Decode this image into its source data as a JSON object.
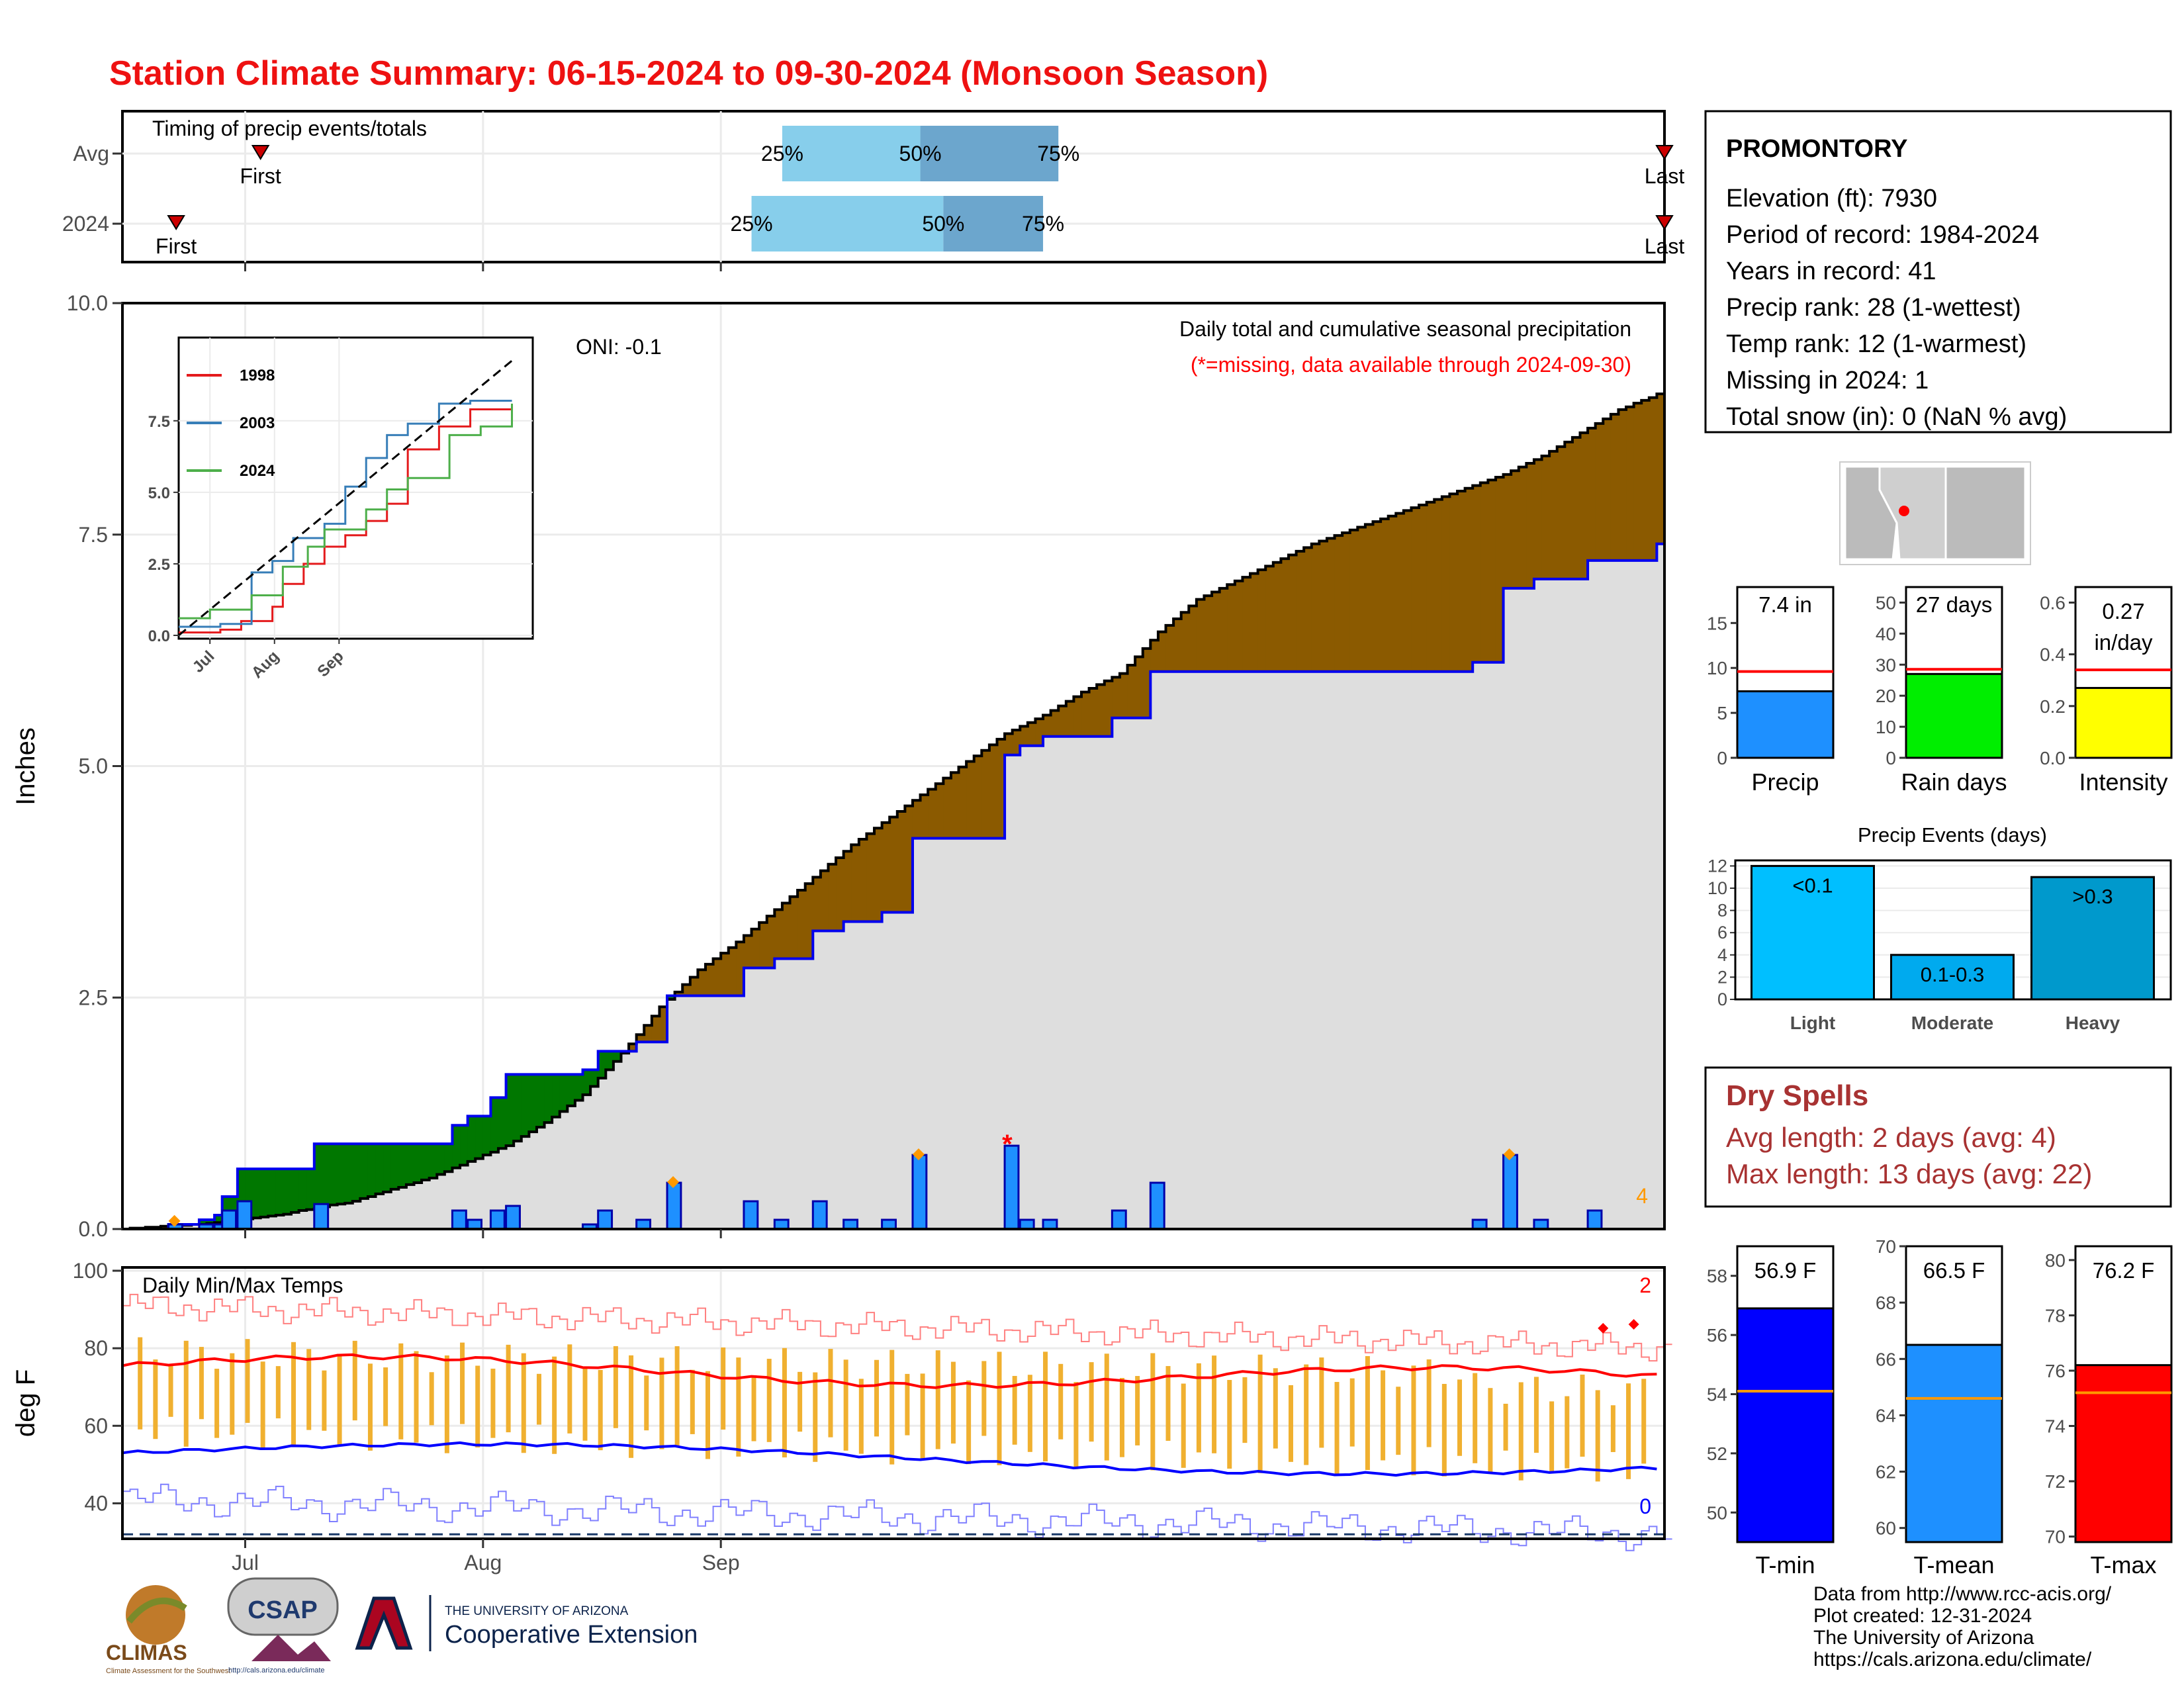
{
  "title": "Station Climate Summary: 06-15-2024 to 09-30-2024 (Monsoon Season)",
  "colors": {
    "title": "#ee1111",
    "wet": "#007700",
    "dry": "#8b5a00",
    "cum_fill": "#dedede",
    "bar": "#1e90ff",
    "tmin": "#0000ff",
    "tmax": "#ff0000",
    "range": "#f0b030",
    "dry_text": "#a83232"
  },
  "month_labels": [
    "Jul",
    "Aug",
    "Sep"
  ],
  "timing": {
    "label": "Timing of precip events/totals",
    "rows": [
      {
        "name": "Avg",
        "first_label": "First",
        "last_label": "Last",
        "q_labels": [
          "25%",
          "50%",
          "75%"
        ],
        "first_day": 18,
        "q25": 86,
        "q50": 104,
        "q75": 122,
        "last_day": 201
      },
      {
        "name": "2024",
        "first_label": "First",
        "last_label": "Last",
        "q_labels": [
          "25%",
          "50%",
          "75%"
        ],
        "first_day": 7,
        "q25": 82,
        "q50": 107,
        "q75": 120,
        "last_day": 201
      }
    ]
  },
  "precip_panel": {
    "ylabel": "Inches",
    "yticks": [
      "0.0",
      "2.5",
      "5.0",
      "7.5",
      "10.0"
    ],
    "oni": "ONI: -0.1",
    "header1": "Daily total and cumulative seasonal precipitation",
    "header2": "(*=missing, data available through 2024-09-30)",
    "count_label": "4"
  },
  "inset": {
    "yticks": [
      "0.0",
      "2.5",
      "5.0",
      "7.5"
    ],
    "xticks": [
      "Jul",
      "Aug",
      "Sep"
    ],
    "legend": [
      "1998",
      "2003",
      "2024"
    ]
  },
  "temp_panel": {
    "ylabel": "deg F",
    "label": "Daily Min/Max Temps",
    "yticks": [
      "40",
      "60",
      "80",
      "100"
    ],
    "count_hi": "2",
    "count_lo": "0"
  },
  "station": {
    "name": "PROMONTORY",
    "lines": [
      "Elevation (ft): 7930",
      "Period of record: 1984-2024",
      "Years in record: 41",
      "Precip rank: 28 (1-wettest)",
      "Temp rank: 12 (1-warmest)",
      "Missing in 2024: 1",
      "Total snow (in): 0 (NaN % avg)"
    ]
  },
  "mini_bars": [
    {
      "label": "Precip",
      "value_label": "7.4 in",
      "value": 7.4,
      "avg": 9.6,
      "max": 19,
      "color": "#1e90ff",
      "ticks": [
        "0",
        "5",
        "10",
        "15"
      ],
      "tickvals": [
        0,
        5,
        10,
        15
      ]
    },
    {
      "label": "Rain days",
      "value_label": "27 days",
      "value": 27,
      "avg": 28.5,
      "max": 55,
      "color": "#00ee00",
      "ticks": [
        "0",
        "10",
        "20",
        "30",
        "40",
        "50"
      ],
      "tickvals": [
        0,
        10,
        20,
        30,
        40,
        50
      ]
    },
    {
      "label": "Intensity",
      "value_label": "0.27 in/day",
      "value_line1": "0.27",
      "value_line2": "in/day",
      "value": 0.27,
      "avg": 0.34,
      "max": 0.66,
      "color": "#ffff00",
      "ticks": [
        "0.0",
        "0.2",
        "0.4",
        "0.6"
      ],
      "tickvals": [
        0,
        0.2,
        0.4,
        0.6
      ]
    }
  ],
  "events": {
    "title": "Precip Events (days)",
    "ticks": [
      "0",
      "2",
      "4",
      "6",
      "8",
      "10",
      "12"
    ],
    "bars": [
      {
        "label": "Light",
        "bin": "<0.1",
        "value": 12,
        "color": "#00bfff"
      },
      {
        "label": "Moderate",
        "bin": "0.1-0.3",
        "value": 4,
        "color": "#00aaee"
      },
      {
        "label": "Heavy",
        "bin": ">0.3",
        "value": 11,
        "color": "#0099cc"
      }
    ]
  },
  "dry_spells": {
    "title": "Dry Spells",
    "line1": "Avg length: 2 days (avg: 4)",
    "line2": "Max length: 13 days (avg: 22)"
  },
  "temp_bars": [
    {
      "label": "T-min",
      "value_label": "56.9 F",
      "value": 56.9,
      "avg": 54.1,
      "ymin": 49,
      "ymax": 59,
      "color": "#0000ff",
      "ticks": [
        "50",
        "52",
        "54",
        "56",
        "58"
      ],
      "tickvals": [
        50,
        52,
        54,
        56,
        58
      ]
    },
    {
      "label": "T-mean",
      "value_label": "66.5 F",
      "value": 66.5,
      "avg": 64.6,
      "ymin": 59.5,
      "ymax": 70,
      "color": "#1e90ff",
      "ticks": [
        "60",
        "62",
        "64",
        "66",
        "68",
        "70"
      ],
      "tickvals": [
        60,
        62,
        64,
        66,
        68,
        70
      ]
    },
    {
      "label": "T-max",
      "value_label": "76.2 F",
      "value": 76.2,
      "avg": 75.2,
      "ymin": 69.8,
      "ymax": 80.5,
      "color": "#ff0000",
      "ticks": [
        "70",
        "72",
        "74",
        "76",
        "78",
        "80"
      ],
      "tickvals": [
        70,
        72,
        74,
        76,
        78,
        80
      ]
    }
  ],
  "footer": {
    "lines": [
      "Data from http://www.rcc-acis.org/",
      "Plot created: 12-31-2024",
      "The University of Arizona",
      "https://cals.arizona.edu/climate/"
    ],
    "logos": {
      "climas": "CLIMAS",
      "climas_sub": "Climate Assessment for the Southwest",
      "csap": "CSAP",
      "csap_url": "http://cals.arizona.edu/climate",
      "ua_top": "THE UNIVERSITY OF ARIZONA",
      "ua_main": "Cooperative Extension"
    }
  },
  "chart_data": [
    {
      "type": "bar",
      "title": "Daily total and cumulative seasonal precipitation",
      "ylabel": "Inches",
      "ylim": [
        0,
        10
      ],
      "x_unit": "day of season (day 0 = 06-15-2024)",
      "daily_precip": [
        [
          6,
          0.05
        ],
        [
          10,
          0.05
        ],
        [
          12,
          0.05
        ],
        [
          13,
          0.2
        ],
        [
          15,
          0.3
        ],
        [
          25,
          0.27
        ],
        [
          43,
          0.2
        ],
        [
          45,
          0.1
        ],
        [
          48,
          0.2
        ],
        [
          50,
          0.25
        ],
        [
          60,
          0.05
        ],
        [
          62,
          0.2
        ],
        [
          67,
          0.1
        ],
        [
          71,
          0.5
        ],
        [
          81,
          0.3
        ],
        [
          85,
          0.1
        ],
        [
          90,
          0.3
        ],
        [
          94,
          0.1
        ],
        [
          99,
          0.1
        ],
        [
          103,
          0.8
        ],
        [
          115,
          0.9
        ],
        [
          117,
          0.1
        ],
        [
          120,
          0.1
        ],
        [
          129,
          0.2
        ],
        [
          134,
          0.5
        ],
        [
          176,
          0.1
        ],
        [
          180,
          0.8
        ],
        [
          184,
          0.1
        ],
        [
          191,
          0.2
        ]
      ],
      "missing_day": 115,
      "cumulative_2024": [
        [
          0,
          0
        ],
        [
          6,
          0.05
        ],
        [
          10,
          0.1
        ],
        [
          12,
          0.15
        ],
        [
          13,
          0.35
        ],
        [
          15,
          0.65
        ],
        [
          25,
          0.92
        ],
        [
          43,
          1.12
        ],
        [
          45,
          1.22
        ],
        [
          48,
          1.42
        ],
        [
          50,
          1.67
        ],
        [
          60,
          1.72
        ],
        [
          62,
          1.92
        ],
        [
          67,
          2.02
        ],
        [
          71,
          2.52
        ],
        [
          81,
          2.82
        ],
        [
          85,
          2.92
        ],
        [
          90,
          3.22
        ],
        [
          94,
          3.32
        ],
        [
          99,
          3.42
        ],
        [
          103,
          4.22
        ],
        [
          115,
          5.12
        ],
        [
          117,
          5.22
        ],
        [
          120,
          5.32
        ],
        [
          129,
          5.52
        ],
        [
          134,
          6.02
        ],
        [
          176,
          6.12
        ],
        [
          180,
          6.92
        ],
        [
          184,
          7.02
        ],
        [
          191,
          7.22
        ],
        [
          200,
          7.4
        ]
      ],
      "cumulative_avg": [
        [
          0,
          0
        ],
        [
          10,
          0.05
        ],
        [
          20,
          0.15
        ],
        [
          30,
          0.3
        ],
        [
          40,
          0.55
        ],
        [
          50,
          0.9
        ],
        [
          55,
          1.15
        ],
        [
          60,
          1.45
        ],
        [
          65,
          1.9
        ],
        [
          70,
          2.4
        ],
        [
          75,
          2.8
        ],
        [
          80,
          3.1
        ],
        [
          85,
          3.45
        ],
        [
          90,
          3.8
        ],
        [
          95,
          4.15
        ],
        [
          100,
          4.45
        ],
        [
          105,
          4.75
        ],
        [
          110,
          5.05
        ],
        [
          115,
          5.35
        ],
        [
          120,
          5.55
        ],
        [
          125,
          5.8
        ],
        [
          130,
          6.0
        ],
        [
          135,
          6.45
        ],
        [
          140,
          6.8
        ],
        [
          145,
          7.0
        ],
        [
          150,
          7.2
        ],
        [
          155,
          7.4
        ],
        [
          160,
          7.55
        ],
        [
          165,
          7.7
        ],
        [
          170,
          7.85
        ],
        [
          175,
          8.0
        ],
        [
          180,
          8.15
        ],
        [
          185,
          8.35
        ],
        [
          190,
          8.6
        ],
        [
          195,
          8.85
        ],
        [
          201,
          9.05
        ]
      ],
      "markers": [
        [
          6,
          0.08
        ],
        [
          71,
          0.5
        ],
        [
          103,
          0.8
        ],
        [
          180,
          0.8
        ]
      ]
    },
    {
      "type": "line",
      "title": "",
      "ylim": [
        0,
        9.5
      ],
      "series": [
        {
          "name": "1998",
          "color": "#e41a1c",
          "points": [
            [
              0,
              0.1
            ],
            [
              20,
              0.2
            ],
            [
              30,
              0.5
            ],
            [
              45,
              1.0
            ],
            [
              50,
              1.8
            ],
            [
              60,
              2.5
            ],
            [
              70,
              3.1
            ],
            [
              80,
              3.5
            ],
            [
              90,
              4.0
            ],
            [
              100,
              4.6
            ],
            [
              110,
              6.5
            ],
            [
              125,
              7.3
            ],
            [
              140,
              7.9
            ],
            [
              160,
              8.0
            ]
          ]
        },
        {
          "name": "2003",
          "color": "#377eb8",
          "points": [
            [
              0,
              0.3
            ],
            [
              20,
              0.4
            ],
            [
              35,
              2.2
            ],
            [
              45,
              2.6
            ],
            [
              55,
              3.4
            ],
            [
              70,
              3.9
            ],
            [
              80,
              5.2
            ],
            [
              90,
              6.2
            ],
            [
              100,
              7.0
            ],
            [
              110,
              7.4
            ],
            [
              125,
              8.1
            ],
            [
              140,
              8.2
            ],
            [
              160,
              8.2
            ]
          ]
        },
        {
          "name": "2024",
          "color": "#4daf4a",
          "points": [
            [
              0,
              0.6
            ],
            [
              15,
              0.9
            ],
            [
              35,
              1.4
            ],
            [
              50,
              2.4
            ],
            [
              62,
              3.1
            ],
            [
              70,
              3.7
            ],
            [
              90,
              4.4
            ],
            [
              100,
              5.1
            ],
            [
              110,
              5.5
            ],
            [
              130,
              7.0
            ],
            [
              145,
              7.3
            ],
            [
              160,
              8.1
            ]
          ]
        },
        {
          "name": "average",
          "dashed": true,
          "color": "#000000",
          "points": [
            [
              0,
              0
            ],
            [
              160,
              9.6
            ]
          ]
        }
      ]
    },
    {
      "type": "bar",
      "title": "Daily Min/Max Temps",
      "ylabel": "deg F",
      "ylim": [
        30,
        100
      ]
    }
  ]
}
